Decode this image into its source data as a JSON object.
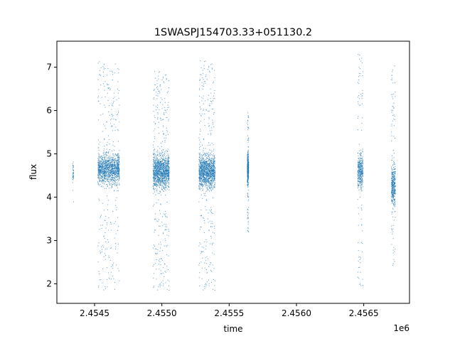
{
  "chart_data": {
    "type": "scatter",
    "title": "1SWASPJ154703.33+051130.2",
    "xlabel": "time",
    "ylabel": "flux",
    "x_offset_label": "1e6",
    "x_scale": 1000000,
    "xlim": [
      2.45422,
      2.45684
    ],
    "ylim": [
      1.55,
      7.6
    ],
    "x_ticks": [
      2.4545,
      2.455,
      2.4555,
      2.456,
      2.4565
    ],
    "x_tick_labels": [
      "2.4545",
      "2.4550",
      "2.4555",
      "2.4560",
      "2.4565"
    ],
    "y_ticks": [
      2,
      3,
      4,
      5,
      6,
      7
    ],
    "y_tick_labels": [
      "2",
      "3",
      "4",
      "5",
      "6",
      "7"
    ],
    "marker_color": "#1f77b4",
    "grid": false,
    "legend": "none",
    "clusters": [
      {
        "x_range": [
          2.454335,
          2.454345
        ],
        "y_core": [
          4.3,
          4.8
        ],
        "y_range": [
          3.85,
          5.15
        ],
        "density": "low"
      },
      {
        "x_range": [
          2.454525,
          2.454685
        ],
        "y_core": [
          4.3,
          5.0
        ],
        "y_range": [
          1.85,
          7.15
        ],
        "density": "high"
      },
      {
        "x_range": [
          2.454935,
          2.455055
        ],
        "y_core": [
          4.2,
          5.0
        ],
        "y_range": [
          1.85,
          6.9
        ],
        "density": "high"
      },
      {
        "x_range": [
          2.455275,
          2.455395
        ],
        "y_core": [
          4.2,
          5.0
        ],
        "y_range": [
          1.85,
          7.15
        ],
        "density": "high"
      },
      {
        "x_range": [
          2.455635,
          2.455645
        ],
        "y_core": [
          4.3,
          5.0
        ],
        "y_range": [
          3.2,
          5.95
        ],
        "density": "medium"
      },
      {
        "x_range": [
          2.456455,
          2.456495
        ],
        "y_core": [
          4.2,
          5.0
        ],
        "y_range": [
          1.85,
          7.3
        ],
        "density": "medium"
      },
      {
        "x_range": [
          2.456705,
          2.456735
        ],
        "y_core": [
          3.8,
          4.8
        ],
        "y_range": [
          2.35,
          7.1
        ],
        "density": "medium"
      }
    ]
  }
}
